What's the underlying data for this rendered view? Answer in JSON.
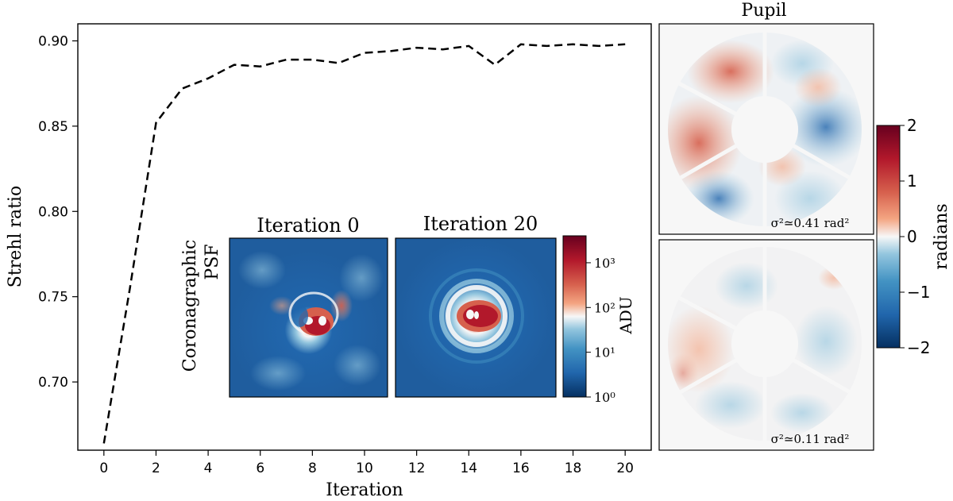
{
  "chart_data": [
    {
      "type": "line",
      "xlabel": "Iteration",
      "ylabel": "Strehl ratio",
      "xlim": [
        -1,
        21
      ],
      "ylim": [
        0.66,
        0.91
      ],
      "xticks": [
        "0",
        "2",
        "4",
        "6",
        "8",
        "10",
        "12",
        "14",
        "16",
        "18",
        "20"
      ],
      "yticks": [
        "0.70",
        "0.75",
        "0.80",
        "0.85",
        "0.90"
      ],
      "line_style": "dashed",
      "line_color": "#000000",
      "x": [
        0,
        1,
        2,
        3,
        4,
        5,
        6,
        7,
        8,
        9,
        10,
        11,
        12,
        13,
        14,
        15,
        16,
        17,
        18,
        19,
        20
      ],
      "y": [
        0.664,
        0.755,
        0.852,
        0.872,
        0.878,
        0.886,
        0.885,
        0.889,
        0.889,
        0.887,
        0.893,
        0.894,
        0.896,
        0.895,
        0.897,
        0.886,
        0.898,
        0.897,
        0.898,
        0.897,
        0.898
      ]
    },
    {
      "type": "heatmap",
      "panel_label": "Coronagraphic PSF",
      "panels": [
        "Iteration 0",
        "Iteration 20"
      ],
      "colorbar": {
        "label": "ADU",
        "scale": "log",
        "ticks": [
          "10⁰",
          "10¹",
          "10²",
          "10³"
        ],
        "range": [
          1,
          4000
        ]
      }
    },
    {
      "type": "heatmap",
      "title": "Pupil",
      "panels": [
        {
          "annotation": "σ²≃0.41 rad²"
        },
        {
          "annotation": "σ²≃0.11 rad²"
        }
      ],
      "colorbar": {
        "label": "radians",
        "ticks": [
          "2",
          "1",
          "0",
          "−1",
          "−2"
        ],
        "range": [
          -2,
          2
        ]
      }
    }
  ],
  "colors": {
    "low": "#053061",
    "mid": "#f7f7f7",
    "high": "#67001f"
  }
}
